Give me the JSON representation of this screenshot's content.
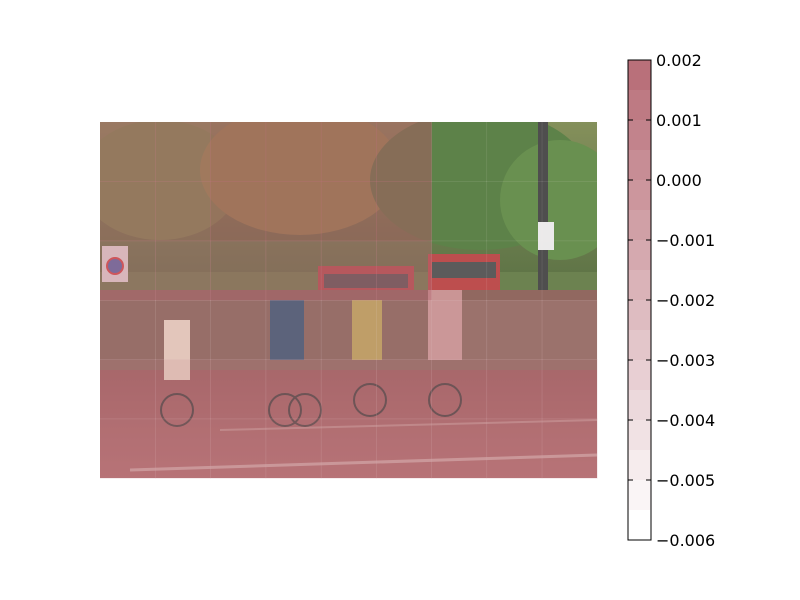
{
  "chart_data": {
    "type": "heatmap",
    "title": "",
    "xlabel": "",
    "ylabel": "",
    "background": "photo of cyclists on a city street with trees and red buses",
    "overlay_colormap": "white-to-red (Reds)",
    "grid": {
      "rows": 6,
      "cols": 9,
      "values": [
        [
          0.0015,
          0.0015,
          0.002,
          0.002,
          0.002,
          0.002,
          -0.0055,
          -0.0055,
          -0.0055
        ],
        [
          0.0015,
          0.0015,
          0.002,
          0.002,
          0.002,
          0.002,
          -0.0055,
          -0.0055,
          -0.0055
        ],
        [
          0.001,
          0.001,
          0.0008,
          0.0008,
          0.0008,
          0.0008,
          -0.0055,
          -0.0055,
          -0.0055
        ],
        [
          -0.004,
          -0.004,
          -0.004,
          -0.004,
          -0.004,
          -0.004,
          -0.003,
          -0.003,
          -0.003
        ],
        [
          -0.002,
          -0.002,
          -0.002,
          -0.002,
          -0.002,
          -0.002,
          -0.002,
          -0.002,
          -0.002
        ],
        [
          -0.001,
          -0.001,
          -0.001,
          -0.001,
          -0.001,
          -0.001,
          -0.001,
          -0.001,
          -0.001
        ]
      ]
    },
    "colorbar": {
      "min": -0.006,
      "max": 0.002,
      "ticks": [
        0.002,
        0.001,
        0.0,
        -0.001,
        -0.002,
        -0.003,
        -0.004,
        -0.005,
        -0.006
      ],
      "tick_labels": [
        "0.002",
        "0.001",
        "0.000",
        "−0.001",
        "−0.002",
        "−0.003",
        "−0.004",
        "−0.005",
        "−0.006"
      ],
      "levels": 16,
      "color_low": "#ffffff",
      "color_high": "#b9707a"
    }
  }
}
